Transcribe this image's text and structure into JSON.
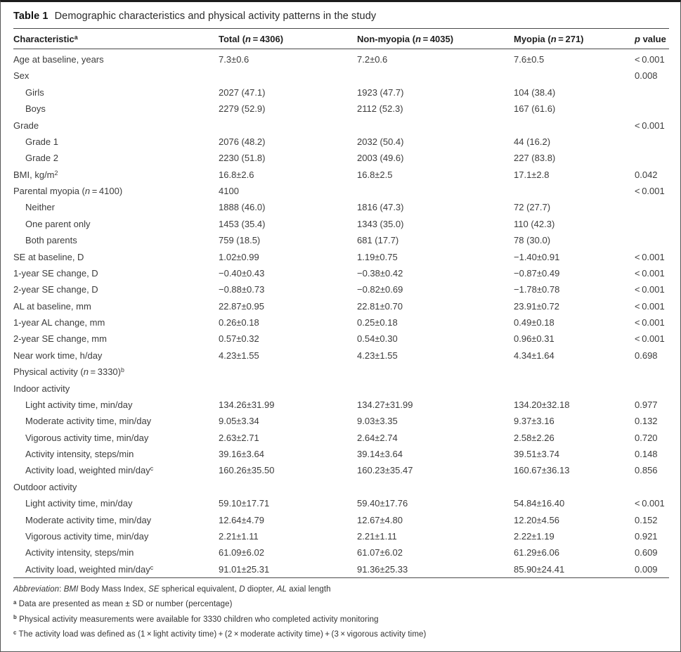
{
  "title": {
    "label": "Table 1",
    "text": "Demographic characteristics and physical activity patterns in the study"
  },
  "colors": {
    "background": "#ffffff",
    "text": "#3c3c3c",
    "heading": "#1f1f1f",
    "rule": "#4a4a4a"
  },
  "table": {
    "columns": [
      "Characteristic^a^",
      "Total (_n_ = 4306)",
      "Non-myopia (_n_ = 4035)",
      "Myopia (_n_ = 271)",
      "_p_ value"
    ],
    "rows": [
      {
        "label": "Age at baseline, years",
        "indent": false,
        "total": "7.3±0.6",
        "nonmyopia": "7.2±0.6",
        "myopia": "7.6±0.5",
        "p": "< 0.001"
      },
      {
        "label": "Sex",
        "indent": false,
        "total": "",
        "nonmyopia": "",
        "myopia": "",
        "p": "0.008"
      },
      {
        "label": "Girls",
        "indent": true,
        "total": "2027 (47.1)",
        "nonmyopia": "1923 (47.7)",
        "myopia": "104 (38.4)",
        "p": ""
      },
      {
        "label": "Boys",
        "indent": true,
        "total": "2279 (52.9)",
        "nonmyopia": "2112 (52.3)",
        "myopia": "167 (61.6)",
        "p": ""
      },
      {
        "label": "Grade",
        "indent": false,
        "total": "",
        "nonmyopia": "",
        "myopia": "",
        "p": "< 0.001"
      },
      {
        "label": "Grade 1",
        "indent": true,
        "total": "2076 (48.2)",
        "nonmyopia": "2032 (50.4)",
        "myopia": "44 (16.2)",
        "p": ""
      },
      {
        "label": "Grade 2",
        "indent": true,
        "total": "2230 (51.8)",
        "nonmyopia": "2003 (49.6)",
        "myopia": "227 (83.8)",
        "p": ""
      },
      {
        "label": "BMI, kg/m^2^",
        "indent": false,
        "total": "16.8±2.6",
        "nonmyopia": "16.8±2.5",
        "myopia": "17.1±2.8",
        "p": "0.042"
      },
      {
        "label": "Parental myopia (_n_ = 4100)",
        "indent": false,
        "total": "4100",
        "nonmyopia": "",
        "myopia": "",
        "p": "< 0.001"
      },
      {
        "label": "Neither",
        "indent": true,
        "total": "1888 (46.0)",
        "nonmyopia": "1816 (47.3)",
        "myopia": "72 (27.7)",
        "p": ""
      },
      {
        "label": "One parent only",
        "indent": true,
        "total": "1453 (35.4)",
        "nonmyopia": "1343 (35.0)",
        "myopia": "110 (42.3)",
        "p": ""
      },
      {
        "label": "Both parents",
        "indent": true,
        "total": "759 (18.5)",
        "nonmyopia": "681 (17.7)",
        "myopia": "78 (30.0)",
        "p": ""
      },
      {
        "label": "SE at baseline, D",
        "indent": false,
        "total": "1.02±0.99",
        "nonmyopia": "1.19±0.75",
        "myopia": "−1.40±0.91",
        "p": "< 0.001"
      },
      {
        "label": "1-year SE change, D",
        "indent": false,
        "total": "−0.40±0.43",
        "nonmyopia": "−0.38±0.42",
        "myopia": "−0.87±0.49",
        "p": "< 0.001"
      },
      {
        "label": "2-year SE change, D",
        "indent": false,
        "total": "−0.88±0.73",
        "nonmyopia": "−0.82±0.69",
        "myopia": "−1.78±0.78",
        "p": "< 0.001"
      },
      {
        "label": "AL at baseline, mm",
        "indent": false,
        "total": "22.87±0.95",
        "nonmyopia": "22.81±0.70",
        "myopia": "23.91±0.72",
        "p": "< 0.001"
      },
      {
        "label": "1-year AL change, mm",
        "indent": false,
        "total": "0.26±0.18",
        "nonmyopia": "0.25±0.18",
        "myopia": "0.49±0.18",
        "p": "< 0.001"
      },
      {
        "label": "2-year SE change, mm",
        "indent": false,
        "total": "0.57±0.32",
        "nonmyopia": "0.54±0.30",
        "myopia": "0.96±0.31",
        "p": "< 0.001"
      },
      {
        "label": "Near work time, h/day",
        "indent": false,
        "total": "4.23±1.55",
        "nonmyopia": "4.23±1.55",
        "myopia": "4.34±1.64",
        "p": "0.698"
      },
      {
        "label": "Physical activity (_n_ = 3330)^b^",
        "indent": false,
        "total": "",
        "nonmyopia": "",
        "myopia": "",
        "p": ""
      },
      {
        "label": "Indoor activity",
        "indent": false,
        "total": "",
        "nonmyopia": "",
        "myopia": "",
        "p": ""
      },
      {
        "label": "Light activity time, min/day",
        "indent": true,
        "total": "134.26±31.99",
        "nonmyopia": "134.27±31.99",
        "myopia": "134.20±32.18",
        "p": "0.977"
      },
      {
        "label": "Moderate activity time, min/day",
        "indent": true,
        "total": "9.05±3.34",
        "nonmyopia": "9.03±3.35",
        "myopia": "9.37±3.16",
        "p": "0.132"
      },
      {
        "label": "Vigorous activity time, min/day",
        "indent": true,
        "total": "2.63±2.71",
        "nonmyopia": "2.64±2.74",
        "myopia": "2.58±2.26",
        "p": "0.720"
      },
      {
        "label": "Activity intensity, steps/min",
        "indent": true,
        "total": "39.16±3.64",
        "nonmyopia": "39.14±3.64",
        "myopia": "39.51±3.74",
        "p": "0.148"
      },
      {
        "label": "Activity load, weighted min/day^c^",
        "indent": true,
        "total": "160.26±35.50",
        "nonmyopia": "160.23±35.47",
        "myopia": "160.67±36.13",
        "p": "0.856"
      },
      {
        "label": "Outdoor activity",
        "indent": false,
        "total": "",
        "nonmyopia": "",
        "myopia": "",
        "p": ""
      },
      {
        "label": "Light activity time, min/day",
        "indent": true,
        "total": "59.10±17.71",
        "nonmyopia": "59.40±17.76",
        "myopia": "54.84±16.40",
        "p": "< 0.001"
      },
      {
        "label": "Moderate activity time, min/day",
        "indent": true,
        "total": "12.64±4.79",
        "nonmyopia": "12.67±4.80",
        "myopia": "12.20±4.56",
        "p": "0.152"
      },
      {
        "label": "Vigorous activity time, min/day",
        "indent": true,
        "total": "2.21±1.11",
        "nonmyopia": "2.21±1.11",
        "myopia": "2.22±1.19",
        "p": "0.921"
      },
      {
        "label": "Activity intensity, steps/min",
        "indent": true,
        "total": "61.09±6.02",
        "nonmyopia": "61.07±6.02",
        "myopia": "61.29±6.06",
        "p": "0.609"
      },
      {
        "label": "Activity load, weighted min/day^c^",
        "indent": true,
        "total": "91.01±25.31",
        "nonmyopia": "91.36±25.33",
        "myopia": "85.90±24.41",
        "p": "0.009"
      }
    ]
  },
  "footnotes": [
    "_Abbreviation_: _BMI_ Body Mass Index, _SE_ spherical equivalent, _D_ diopter, _AL_ axial length",
    "^a^ Data are presented as mean ± SD or number (percentage)",
    "^b^ Physical activity measurements were available for 3330 children who completed activity monitoring",
    "^c^ The activity load was defined as (1 × light activity time) + (2 × moderate activity time) + (3 × vigorous activity time)"
  ]
}
